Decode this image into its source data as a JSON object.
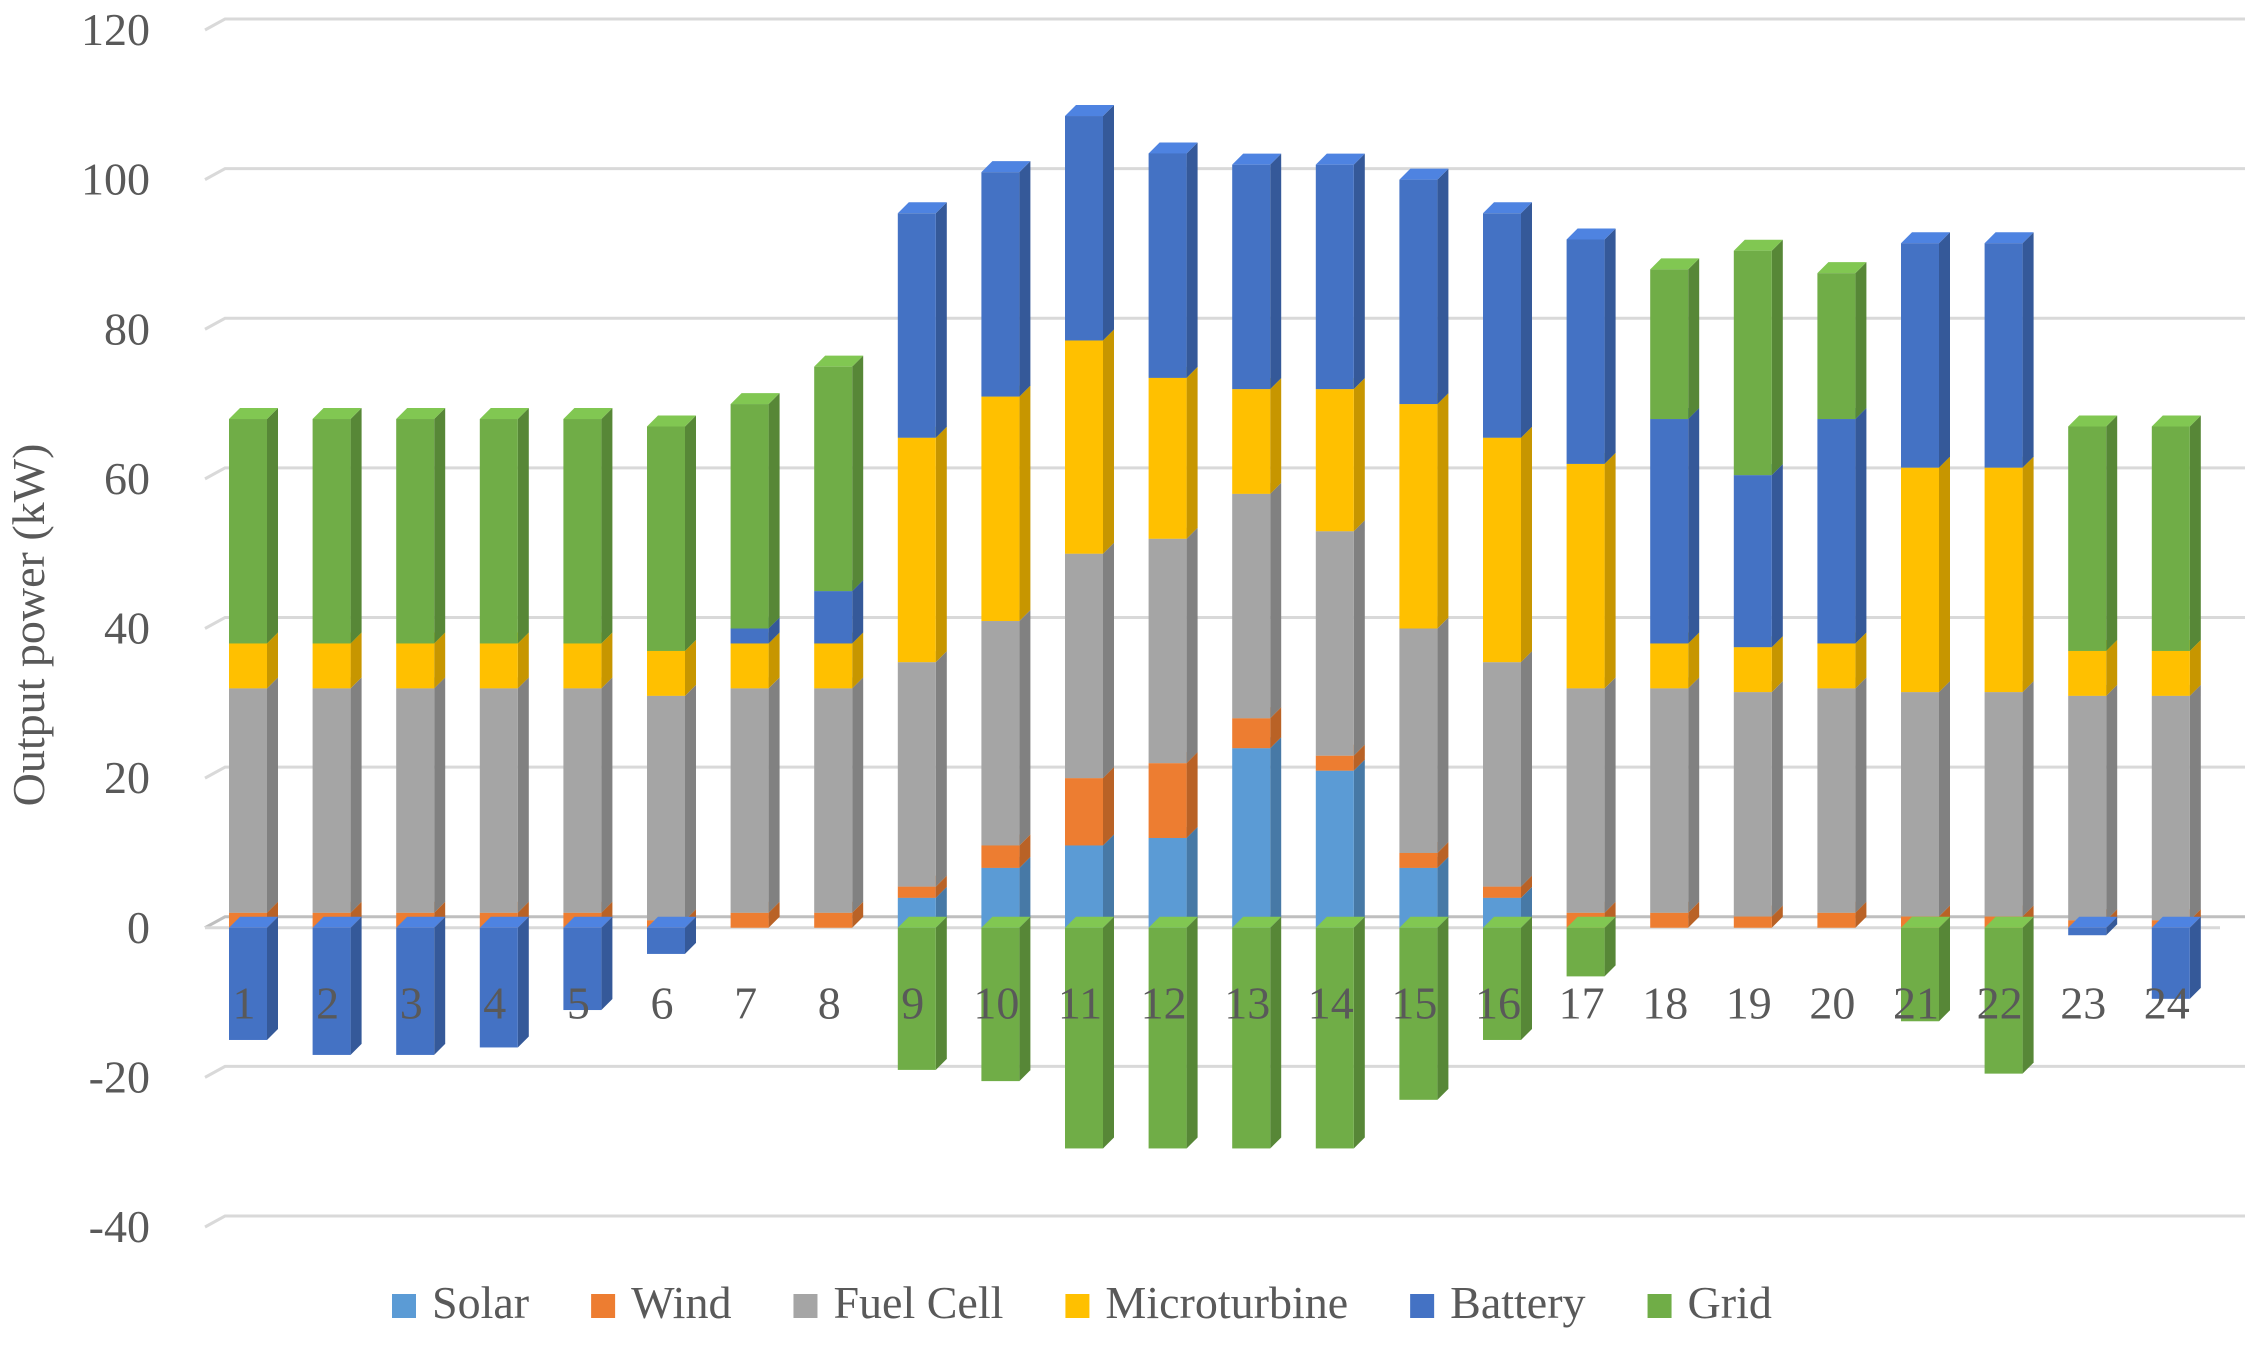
{
  "chart_data": {
    "type": "bar",
    "stacked": true,
    "title": "",
    "xlabel": "",
    "ylabel": "Output power (kW)",
    "ylim": [
      -40,
      120
    ],
    "yticks": [
      -40,
      -20,
      0,
      20,
      40,
      60,
      80,
      100,
      120
    ],
    "grid": true,
    "legend_position": "bottom",
    "categories": [
      "1",
      "2",
      "3",
      "4",
      "5",
      "6",
      "7",
      "8",
      "9",
      "10",
      "11",
      "12",
      "13",
      "14",
      "15",
      "16",
      "17",
      "18",
      "19",
      "20",
      "21",
      "22",
      "23",
      "24"
    ],
    "series": [
      {
        "name": "Solar",
        "color": "#5B9BD5",
        "values": [
          0,
          0,
          0,
          0,
          0,
          0,
          0,
          0,
          4,
          8,
          11,
          12,
          24,
          21,
          8,
          4,
          0,
          0,
          0,
          0,
          0,
          0,
          0,
          0
        ]
      },
      {
        "name": "Wind",
        "color": "#ED7D31",
        "values": [
          2,
          2,
          2,
          2,
          2,
          1,
          2,
          2,
          1.5,
          3,
          9,
          10,
          4,
          2,
          2,
          1.5,
          2,
          2,
          1.5,
          2,
          1.5,
          1.5,
          1,
          1
        ]
      },
      {
        "name": "Fuel Cell",
        "color": "#A5A5A5",
        "values": [
          30,
          30,
          30,
          30,
          30,
          30,
          30,
          30,
          30,
          30,
          30,
          30,
          30,
          30,
          30,
          30,
          30,
          30,
          30,
          30,
          30,
          30,
          30,
          30
        ]
      },
      {
        "name": "Microturbine",
        "color": "#FFC000",
        "values": [
          6,
          6,
          6,
          6,
          6,
          6,
          6,
          6,
          30,
          30,
          28.5,
          21.5,
          14,
          19,
          30,
          30,
          30,
          6,
          6,
          6,
          30,
          30,
          6,
          6
        ]
      },
      {
        "name": "Battery",
        "color": "#4472C4",
        "values": [
          -15,
          -17,
          -17,
          -16,
          -11,
          -3.5,
          2,
          7,
          30,
          30,
          30,
          30,
          30,
          30,
          30,
          30,
          30,
          30,
          23,
          30,
          30,
          30,
          -1,
          -9.5
        ]
      },
      {
        "name": "Grid",
        "color": "#70AD47",
        "values": [
          30,
          30,
          30,
          30,
          30,
          30,
          30,
          30,
          -19,
          -20.5,
          -29.5,
          -29.5,
          -29.5,
          -29.5,
          -23,
          -15,
          -6.5,
          20,
          30,
          19.5,
          -12.5,
          -19.5,
          30,
          30
        ]
      }
    ]
  }
}
